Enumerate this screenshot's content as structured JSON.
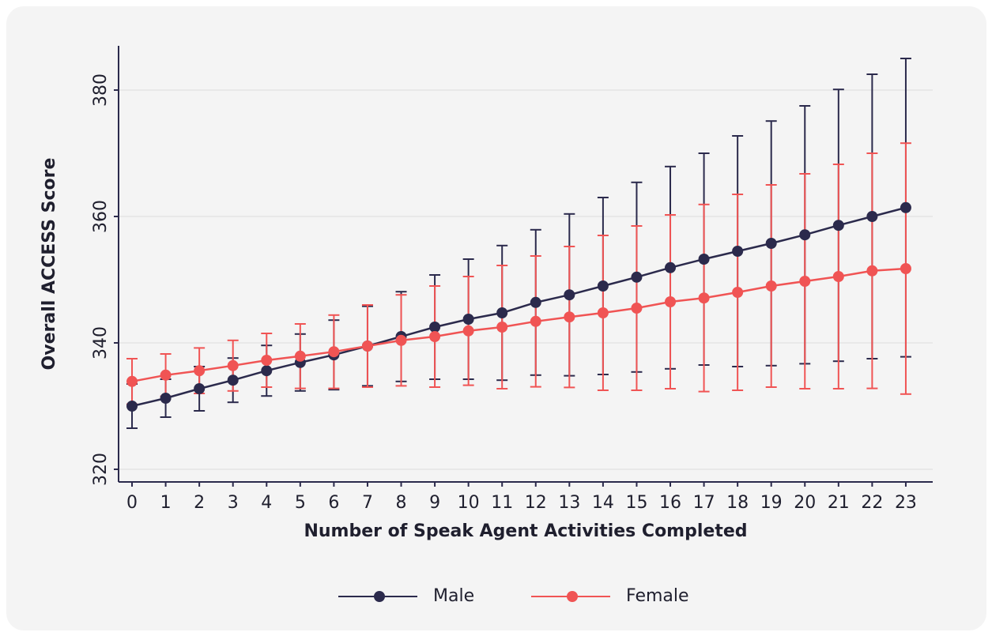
{
  "chart_data": {
    "type": "line",
    "x_label": "Number of Speak Agent Activities Completed",
    "y_label": "Overall ACCESS Score",
    "x": [
      0,
      1,
      2,
      3,
      4,
      5,
      6,
      7,
      8,
      9,
      10,
      11,
      12,
      13,
      14,
      15,
      16,
      17,
      18,
      19,
      20,
      21,
      22,
      23
    ],
    "series": [
      {
        "name": "Male",
        "color": "#2b2a4c",
        "values": [
          330,
          331.25,
          332.75,
          334.1,
          335.6,
          336.9,
          338.1,
          339.5,
          341,
          342.5,
          343.75,
          344.75,
          346.4,
          347.6,
          349,
          350.4,
          351.9,
          353.25,
          354.5,
          355.75,
          357.1,
          358.6,
          360,
          361.4
        ],
        "errors": [
          3.5,
          3,
          3.5,
          3.5,
          4,
          4.5,
          5.5,
          6.3,
          7.1,
          8.25,
          9.5,
          10.65,
          11.5,
          12.8,
          14,
          15,
          16,
          16.75,
          18.25,
          19.35,
          20.4,
          21.5,
          22.5,
          23.6
        ]
      },
      {
        "name": "Female",
        "color": "#f05454",
        "values": [
          333.9,
          334.9,
          335.6,
          336.4,
          337.25,
          337.9,
          338.6,
          339.5,
          340.4,
          341,
          341.9,
          342.5,
          343.4,
          344.1,
          344.75,
          345.5,
          346.5,
          347.1,
          348,
          349,
          349.75,
          350.5,
          351.4,
          351.75
        ],
        "errors": [
          3.6,
          3.35,
          3.6,
          4,
          4.25,
          5.1,
          5.8,
          6.5,
          7.2,
          8,
          8.6,
          9.75,
          10.35,
          11.15,
          12.25,
          13,
          13.75,
          14.8,
          15.5,
          16,
          17,
          17.75,
          18.6,
          19.85
        ]
      }
    ],
    "xlim": [
      -0.4,
      23.8
    ],
    "xticks": [
      0,
      1,
      2,
      3,
      4,
      5,
      6,
      7,
      8,
      9,
      10,
      11,
      12,
      13,
      14,
      15,
      16,
      17,
      18,
      19,
      20,
      21,
      22,
      23
    ],
    "ylim": [
      318,
      387
    ],
    "yticks": [
      320,
      340,
      360,
      380
    ],
    "grid": true,
    "legend": "bottom"
  }
}
